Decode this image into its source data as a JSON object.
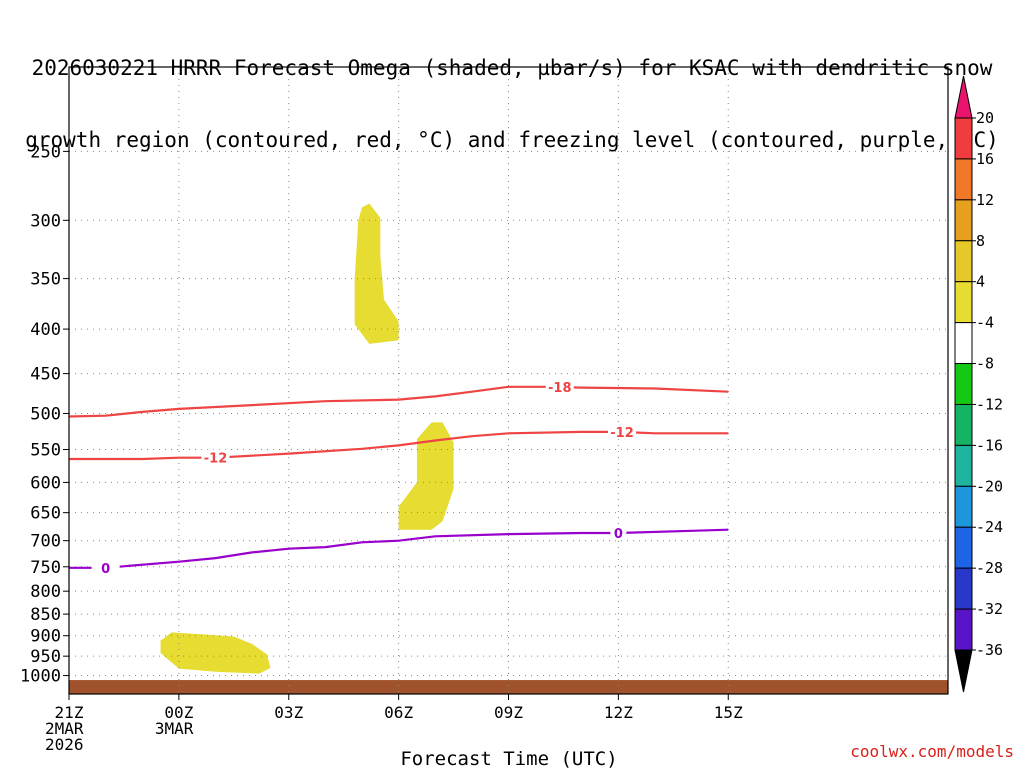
{
  "title_lines": [
    "2026030221 HRRR Forecast Omega (shaded, µbar/s) for KSAC with dendritic snow",
    "growth region (contoured, red, °C) and freezing level (contoured, purple, °C)"
  ],
  "credit": "coolwx.com/models",
  "chart_data": {
    "type": "time-height cross-section",
    "xlabel": "Forecast Time (UTC)",
    "ylabel": "",
    "x_hours": [
      -3,
      21
    ],
    "x_ticks": [
      {
        "h": -3,
        "lines": [
          "21Z",
          "2MAR",
          "2026"
        ]
      },
      {
        "h": 0,
        "lines": [
          "00Z",
          "3MAR"
        ]
      },
      {
        "h": 3,
        "lines": [
          "03Z"
        ]
      },
      {
        "h": 6,
        "lines": [
          "06Z"
        ]
      },
      {
        "h": 9,
        "lines": [
          "09Z"
        ]
      },
      {
        "h": 12,
        "lines": [
          "12Z"
        ]
      },
      {
        "h": 15,
        "lines": [
          "15Z"
        ]
      }
    ],
    "y_ticks": [
      250,
      300,
      350,
      400,
      450,
      500,
      550,
      600,
      650,
      700,
      750,
      800,
      850,
      900,
      950,
      1000
    ],
    "y_range_hPa": [
      1050,
      200
    ],
    "grid": true,
    "colorbar": {
      "labels": [
        20,
        16,
        12,
        8,
        4,
        -4,
        -8,
        -12,
        -16,
        -20,
        -24,
        -28,
        -32,
        -36
      ],
      "colors": [
        "#e8146e",
        "#f03c3c",
        "#f07828",
        "#e6a01e",
        "#e6c828",
        "#e6dc32",
        "#ffffff",
        "#14c814",
        "#14b464",
        "#1eb4a0",
        "#1e96dc",
        "#1e64e6",
        "#2838c8",
        "#5a14c8",
        "#9600c8",
        "#a0a0a0",
        "#000000"
      ]
    },
    "contours": [
      {
        "label": "-18",
        "color": "#ee4444",
        "points": [
          [
            -3,
            504
          ],
          [
            -2,
            503
          ],
          [
            -1,
            498
          ],
          [
            0,
            494
          ],
          [
            2,
            489
          ],
          [
            4,
            484
          ],
          [
            6,
            482
          ],
          [
            7,
            478
          ],
          [
            8,
            472
          ],
          [
            9,
            466
          ],
          [
            10,
            466
          ],
          [
            11,
            467
          ],
          [
            13,
            468
          ],
          [
            15,
            472
          ]
        ],
        "label_at": 10.4
      },
      {
        "label": "-12",
        "color": "#ee4444",
        "points": [
          [
            -3,
            564
          ],
          [
            -1,
            564
          ],
          [
            0,
            562
          ],
          [
            1,
            562
          ],
          [
            3,
            556
          ],
          [
            5,
            549
          ],
          [
            6,
            544
          ],
          [
            7,
            537
          ],
          [
            8,
            531
          ],
          [
            9,
            527
          ],
          [
            11,
            525
          ],
          [
            12,
            525
          ],
          [
            13,
            527
          ],
          [
            15,
            527
          ]
        ],
        "label_at": 1
      },
      {
        "label": "-12",
        "color": "#ee4444",
        "points": [],
        "label_at": 12.1
      },
      {
        "label": "0",
        "color": "#9900cc",
        "points": [
          [
            -3,
            752
          ],
          [
            -2,
            752
          ],
          [
            0,
            740
          ],
          [
            1,
            733
          ],
          [
            2,
            722
          ],
          [
            3,
            715
          ],
          [
            4,
            712
          ],
          [
            5,
            703
          ],
          [
            6,
            700
          ],
          [
            7,
            692
          ],
          [
            9,
            688
          ],
          [
            11,
            686
          ],
          [
            12,
            686
          ],
          [
            14,
            682
          ],
          [
            15,
            680
          ]
        ],
        "label_at": -2
      }
    ],
    "zero_label_2_at": 12,
    "omega_regions": [
      {
        "value": "4 to 8",
        "color": "#e6dc32",
        "points": [
          [
            5,
            290
          ],
          [
            5.2,
            287
          ],
          [
            5.5,
            298
          ],
          [
            5.5,
            330
          ],
          [
            5.6,
            370
          ],
          [
            6,
            392
          ],
          [
            6,
            412
          ],
          [
            5.2,
            416
          ],
          [
            4.8,
            395
          ],
          [
            4.8,
            350
          ],
          [
            4.9,
            300
          ]
        ]
      },
      {
        "value": "4 to 8",
        "color": "#e6dc32",
        "points": [
          [
            6.5,
            535
          ],
          [
            6.9,
            512
          ],
          [
            7.2,
            512
          ],
          [
            7.5,
            540
          ],
          [
            7.5,
            610
          ],
          [
            7.2,
            665
          ],
          [
            6.9,
            680
          ],
          [
            6,
            680
          ],
          [
            6,
            640
          ],
          [
            6.5,
            600
          ]
        ]
      },
      {
        "value": "4 to 8",
        "color": "#e6dc32",
        "points": [
          [
            -0.5,
            912
          ],
          [
            -0.2,
            892
          ],
          [
            0.5,
            896
          ],
          [
            1.5,
            902
          ],
          [
            2,
            920
          ],
          [
            2.4,
            945
          ],
          [
            2.5,
            980
          ],
          [
            2.2,
            995
          ],
          [
            1,
            990
          ],
          [
            0,
            982
          ],
          [
            -0.5,
            942
          ]
        ]
      }
    ],
    "terrain": {
      "color": "#a0522d",
      "top_hPa": 1012
    }
  }
}
